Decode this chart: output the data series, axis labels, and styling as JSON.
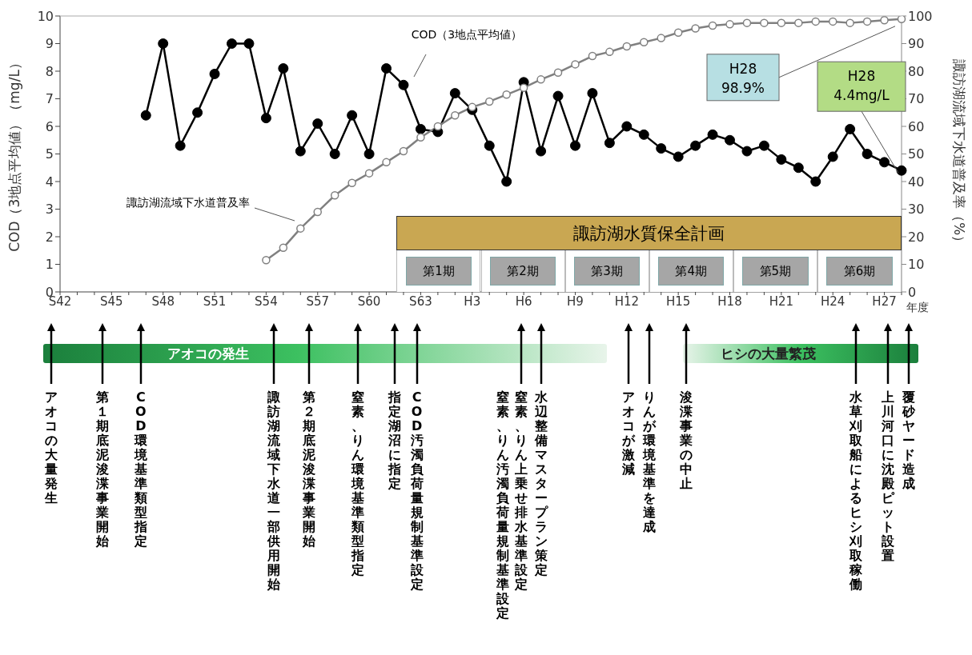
{
  "chart_data": {
    "type": "line",
    "xlabel": "年度",
    "ylabel": "COD（3地点平均値）（mg/L）",
    "y2label": "諏訪湖流域下水道普及率（%）",
    "categories": [
      "S42",
      null,
      null,
      "S45",
      null,
      null,
      "S48",
      null,
      null,
      "S51",
      null,
      null,
      "S54",
      null,
      null,
      "S57",
      null,
      null,
      "S60",
      null,
      null,
      "S63",
      null,
      null,
      "H3",
      null,
      null,
      "H6",
      null,
      null,
      "H9",
      null,
      null,
      "H12",
      null,
      null,
      "H15",
      null,
      null,
      "H18",
      null,
      null,
      "H21",
      null,
      null,
      "H24",
      null,
      null,
      "H27",
      null
    ],
    "series": [
      {
        "name": "COD（3地点平均値）",
        "color": "#000000",
        "values": [
          null,
          null,
          null,
          null,
          null,
          6.4,
          9.0,
          5.3,
          6.5,
          7.9,
          9.0,
          9.0,
          6.3,
          8.1,
          5.1,
          6.1,
          5.0,
          6.4,
          5.0,
          8.1,
          7.5,
          5.9,
          5.8,
          7.2,
          6.6,
          5.3,
          4.0,
          7.6,
          5.1,
          7.1,
          5.3,
          7.2,
          5.4,
          6.0,
          5.7,
          5.2,
          4.9,
          5.3,
          5.7,
          5.5,
          5.1,
          5.3,
          4.8,
          4.5,
          4.0,
          4.9,
          5.9,
          5.0,
          4.7,
          4.4
        ],
        "value_labels": [
          null,
          null,
          null,
          null,
          null,
          null,
          null,
          null,
          null,
          null,
          null,
          null,
          null,
          null,
          null,
          null,
          null,
          null,
          null,
          null,
          null,
          null,
          null,
          null,
          null,
          null,
          null,
          null,
          null,
          null,
          null,
          null,
          null,
          null,
          null,
          null,
          null,
          null,
          null,
          null,
          null,
          null,
          null,
          null,
          null,
          null,
          null,
          null,
          null,
          "H28\n4.4mg/L"
        ]
      },
      {
        "name": "諏訪湖流域下水道普及率",
        "color": "#808080",
        "axis": "y2",
        "values": [
          null,
          null,
          null,
          null,
          null,
          null,
          null,
          null,
          null,
          null,
          null,
          null,
          11.5,
          16,
          23,
          29,
          35,
          39.5,
          43,
          47,
          51,
          56,
          60,
          64,
          67,
          69,
          71.5,
          74,
          77,
          79.5,
          82.5,
          85.5,
          87,
          89,
          90.5,
          92,
          94,
          95.5,
          96.5,
          97,
          97.5,
          97.5,
          97.5,
          97.5,
          98,
          98,
          97.5,
          98,
          98.5,
          98.9
        ],
        "value_labels": [
          null,
          null,
          null,
          null,
          null,
          null,
          null,
          null,
          null,
          null,
          null,
          null,
          null,
          null,
          null,
          null,
          null,
          null,
          null,
          null,
          null,
          null,
          null,
          null,
          null,
          null,
          null,
          null,
          null,
          null,
          null,
          null,
          null,
          null,
          null,
          null,
          null,
          null,
          null,
          null,
          null,
          null,
          null,
          null,
          null,
          null,
          null,
          null,
          null,
          "H28\n98.9%"
        ]
      }
    ],
    "ylim": [
      0,
      10
    ],
    "yticks": [
      0,
      1,
      2,
      3,
      4,
      5,
      6,
      7,
      8,
      9,
      10
    ],
    "y2lim": [
      0,
      100
    ],
    "y2ticks": [
      0,
      10,
      20,
      30,
      40,
      50,
      60,
      70,
      80,
      90,
      100
    ],
    "marker": "circle",
    "line_style": "solid",
    "grid": false,
    "annotations": [
      "諏訪湖水質保全計画",
      "第1期",
      "第2期",
      "第3期",
      "第4期",
      "第5期",
      "第6期",
      "アオコの発生",
      "ヒシの大量繁茂",
      "アオコの大量発生",
      "第１期底泥浚渫事業開始",
      "COD環境基準類型指定",
      "諏訪湖流域下水道一部供用開始",
      "第２期底泥浚渫事業開始",
      "窒素、りん環境基準類型指定",
      "指定湖沼に指定",
      "COD汚濁負荷量規制基準設定",
      "窒素、りん上乗せ排水基準設定",
      "窒素、りん汚濁負荷量規制基準設定",
      "水辺整備マスタープラン策定",
      "アオコが激減",
      "りんが環境基準を達成",
      "浚渫事業の中止",
      "水草刈取船によるヒシ刈取稼働",
      "上川河口に沈殿ピット設置",
      "覆砂ヤード造成"
    ]
  }
}
